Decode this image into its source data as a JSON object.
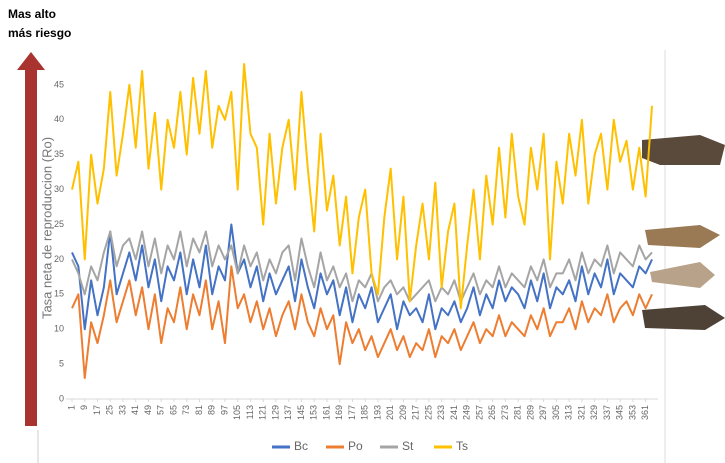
{
  "chart_data": {
    "type": "line",
    "annotations": [
      "Mas alto",
      "más riesgo"
    ],
    "y_label": "Tasa neta de reproduccion (Ro)",
    "x": [
      1,
      5,
      9,
      13,
      17,
      21,
      25,
      29,
      33,
      37,
      41,
      45,
      49,
      53,
      57,
      61,
      65,
      69,
      73,
      77,
      81,
      85,
      89,
      93,
      97,
      101,
      105,
      109,
      113,
      117,
      121,
      125,
      129,
      133,
      137,
      141,
      145,
      149,
      153,
      157,
      161,
      165,
      169,
      173,
      177,
      181,
      185,
      189,
      193,
      197,
      201,
      205,
      209,
      213,
      217,
      221,
      225,
      229,
      233,
      237,
      241,
      245,
      249,
      253,
      257,
      261,
      265,
      269,
      273,
      277,
      281,
      285,
      289,
      293,
      297,
      301,
      305,
      309,
      313,
      317,
      321,
      325,
      329,
      333,
      337,
      341,
      345,
      349,
      353,
      357,
      361,
      365
    ],
    "xlim": [
      1,
      365
    ],
    "xticks": [
      1,
      9,
      17,
      25,
      33,
      41,
      49,
      57,
      65,
      73,
      81,
      89,
      97,
      105,
      113,
      121,
      129,
      137,
      145,
      153,
      161,
      169,
      177,
      185,
      193,
      201,
      209,
      217,
      225,
      233,
      241,
      249,
      257,
      265,
      273,
      281,
      289,
      297,
      305,
      313,
      321,
      329,
      337,
      345,
      353,
      361
    ],
    "ylim": [
      0,
      50
    ],
    "yticks": [
      0,
      5,
      10,
      15,
      20,
      25,
      30,
      35,
      40,
      45
    ],
    "series": [
      {
        "name": "Bc",
        "color": "#4472c4",
        "values": [
          21,
          19,
          10,
          17,
          12,
          16,
          24,
          15,
          18,
          21,
          17,
          22,
          16,
          20,
          14,
          19,
          17,
          21,
          15,
          20,
          16,
          22,
          15,
          19,
          17,
          25,
          18,
          20,
          16,
          19,
          14,
          18,
          15,
          17,
          19,
          14,
          20,
          16,
          13,
          18,
          15,
          17,
          12,
          16,
          11,
          15,
          13,
          16,
          11,
          13,
          15,
          10,
          14,
          12,
          13,
          11,
          15,
          10,
          13,
          12,
          14,
          11,
          13,
          16,
          12,
          15,
          13,
          17,
          14,
          16,
          15,
          13,
          17,
          14,
          18,
          13,
          16,
          15,
          17,
          14,
          19,
          15,
          18,
          16,
          20,
          15,
          18,
          17,
          16,
          19,
          18,
          20
        ]
      },
      {
        "name": "Po",
        "color": "#ed7d31",
        "values": [
          13,
          15,
          3,
          11,
          8,
          12,
          17,
          11,
          14,
          17,
          12,
          16,
          10,
          15,
          8,
          13,
          11,
          16,
          10,
          15,
          12,
          17,
          10,
          14,
          8,
          19,
          13,
          15,
          11,
          14,
          10,
          13,
          9,
          12,
          14,
          10,
          15,
          11,
          9,
          13,
          10,
          12,
          5,
          11,
          8,
          10,
          7,
          9,
          6,
          8,
          10,
          7,
          9,
          6,
          8,
          7,
          10,
          6,
          9,
          8,
          10,
          7,
          9,
          11,
          8,
          10,
          9,
          12,
          9,
          11,
          10,
          9,
          12,
          10,
          13,
          9,
          11,
          11,
          13,
          10,
          14,
          11,
          13,
          12,
          15,
          11,
          13,
          14,
          12,
          15,
          13,
          15
        ]
      },
      {
        "name": "St",
        "color": "#a5a5a5",
        "values": [
          20,
          18,
          15,
          19,
          17,
          21,
          24,
          19,
          22,
          23,
          20,
          24,
          19,
          23,
          18,
          22,
          20,
          24,
          19,
          23,
          21,
          24,
          19,
          22,
          20,
          22,
          18,
          22,
          19,
          21,
          17,
          20,
          18,
          21,
          22,
          17,
          23,
          19,
          16,
          21,
          17,
          19,
          16,
          18,
          14,
          17,
          16,
          18,
          14,
          16,
          17,
          15,
          16,
          14,
          15,
          16,
          17,
          14,
          16,
          15,
          17,
          14,
          16,
          18,
          15,
          17,
          16,
          19,
          16,
          18,
          17,
          16,
          19,
          17,
          20,
          16,
          18,
          18,
          20,
          17,
          21,
          18,
          20,
          19,
          22,
          18,
          21,
          20,
          19,
          22,
          20,
          21
        ]
      },
      {
        "name": "Ts",
        "color": "#ffc000",
        "values": [
          30,
          34,
          20,
          35,
          28,
          33,
          44,
          32,
          38,
          45,
          36,
          47,
          33,
          41,
          30,
          40,
          36,
          44,
          35,
          46,
          38,
          47,
          36,
          42,
          40,
          44,
          30,
          48,
          38,
          36,
          25,
          38,
          28,
          36,
          40,
          30,
          44,
          33,
          24,
          38,
          27,
          32,
          22,
          29,
          18,
          26,
          30,
          18,
          15,
          26,
          33,
          20,
          29,
          14,
          22,
          28,
          20,
          31,
          16,
          24,
          28,
          13,
          22,
          30,
          20,
          32,
          25,
          36,
          26,
          38,
          29,
          25,
          36,
          30,
          38,
          20,
          34,
          28,
          38,
          32,
          40,
          28,
          35,
          38,
          30,
          40,
          34,
          37,
          30,
          36,
          29,
          42
        ]
      }
    ]
  }
}
